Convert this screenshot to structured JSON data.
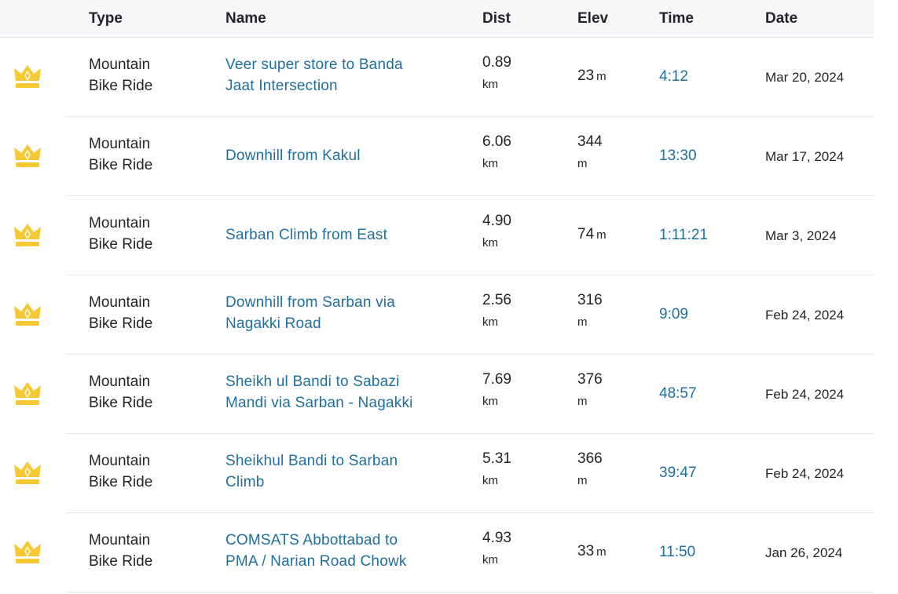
{
  "header": {
    "type": "Type",
    "name": "Name",
    "dist": "Dist",
    "elev": "Elev",
    "time": "Time",
    "date": "Date"
  },
  "icon": "crown-icon",
  "colors": {
    "crown": "#f6c833",
    "link": "#1e6f9e",
    "text": "#242428",
    "header_bg": "#f7f7fa"
  },
  "rows": [
    {
      "type_line1": "Mountain",
      "type_line2": "Bike Ride",
      "name_line1": "Veer super store to Banda",
      "name_line2": "Jaat Intersection",
      "dist": "0.89",
      "dist_unit": "km",
      "elev": "23",
      "elev_unit": "m",
      "elev_stacked": false,
      "time": "4:12",
      "date": "Mar 20, 2024"
    },
    {
      "type_line1": "Mountain",
      "type_line2": "Bike Ride",
      "name_line1": "Downhill from Kakul",
      "name_line2": "",
      "dist": "6.06",
      "dist_unit": "km",
      "elev": "344",
      "elev_unit": "m",
      "elev_stacked": true,
      "time": "13:30",
      "date": "Mar 17, 2024"
    },
    {
      "type_line1": "Mountain",
      "type_line2": "Bike Ride",
      "name_line1": "Sarban Climb from East",
      "name_line2": "",
      "dist": "4.90",
      "dist_unit": "km",
      "elev": "74",
      "elev_unit": "m",
      "elev_stacked": false,
      "time": "1:11:21",
      "date": "Mar 3, 2024"
    },
    {
      "type_line1": "Mountain",
      "type_line2": "Bike Ride",
      "name_line1": "Downhill from Sarban via",
      "name_line2": "Nagakki Road",
      "dist": "2.56",
      "dist_unit": "km",
      "elev": "316",
      "elev_unit": "m",
      "elev_stacked": true,
      "time": "9:09",
      "date": "Feb 24, 2024"
    },
    {
      "type_line1": "Mountain",
      "type_line2": "Bike Ride",
      "name_line1": "Sheikh ul Bandi to Sabazi",
      "name_line2": "Mandi via Sarban - Nagakki",
      "dist": "7.69",
      "dist_unit": "km",
      "elev": "376",
      "elev_unit": "m",
      "elev_stacked": true,
      "time": "48:57",
      "date": "Feb 24, 2024"
    },
    {
      "type_line1": "Mountain",
      "type_line2": "Bike Ride",
      "name_line1": "Sheikhul Bandi to Sarban",
      "name_line2": "Climb",
      "dist": "5.31",
      "dist_unit": "km",
      "elev": "366",
      "elev_unit": "m",
      "elev_stacked": true,
      "time": "39:47",
      "date": "Feb 24, 2024"
    },
    {
      "type_line1": "Mountain",
      "type_line2": "Bike Ride",
      "name_line1": "COMSATS Abbottabad to",
      "name_line2": "PMA / Narian Road Chowk",
      "dist": "4.93",
      "dist_unit": "km",
      "elev": "33",
      "elev_unit": "m",
      "elev_stacked": false,
      "time": "11:50",
      "date": "Jan 26, 2024"
    }
  ]
}
